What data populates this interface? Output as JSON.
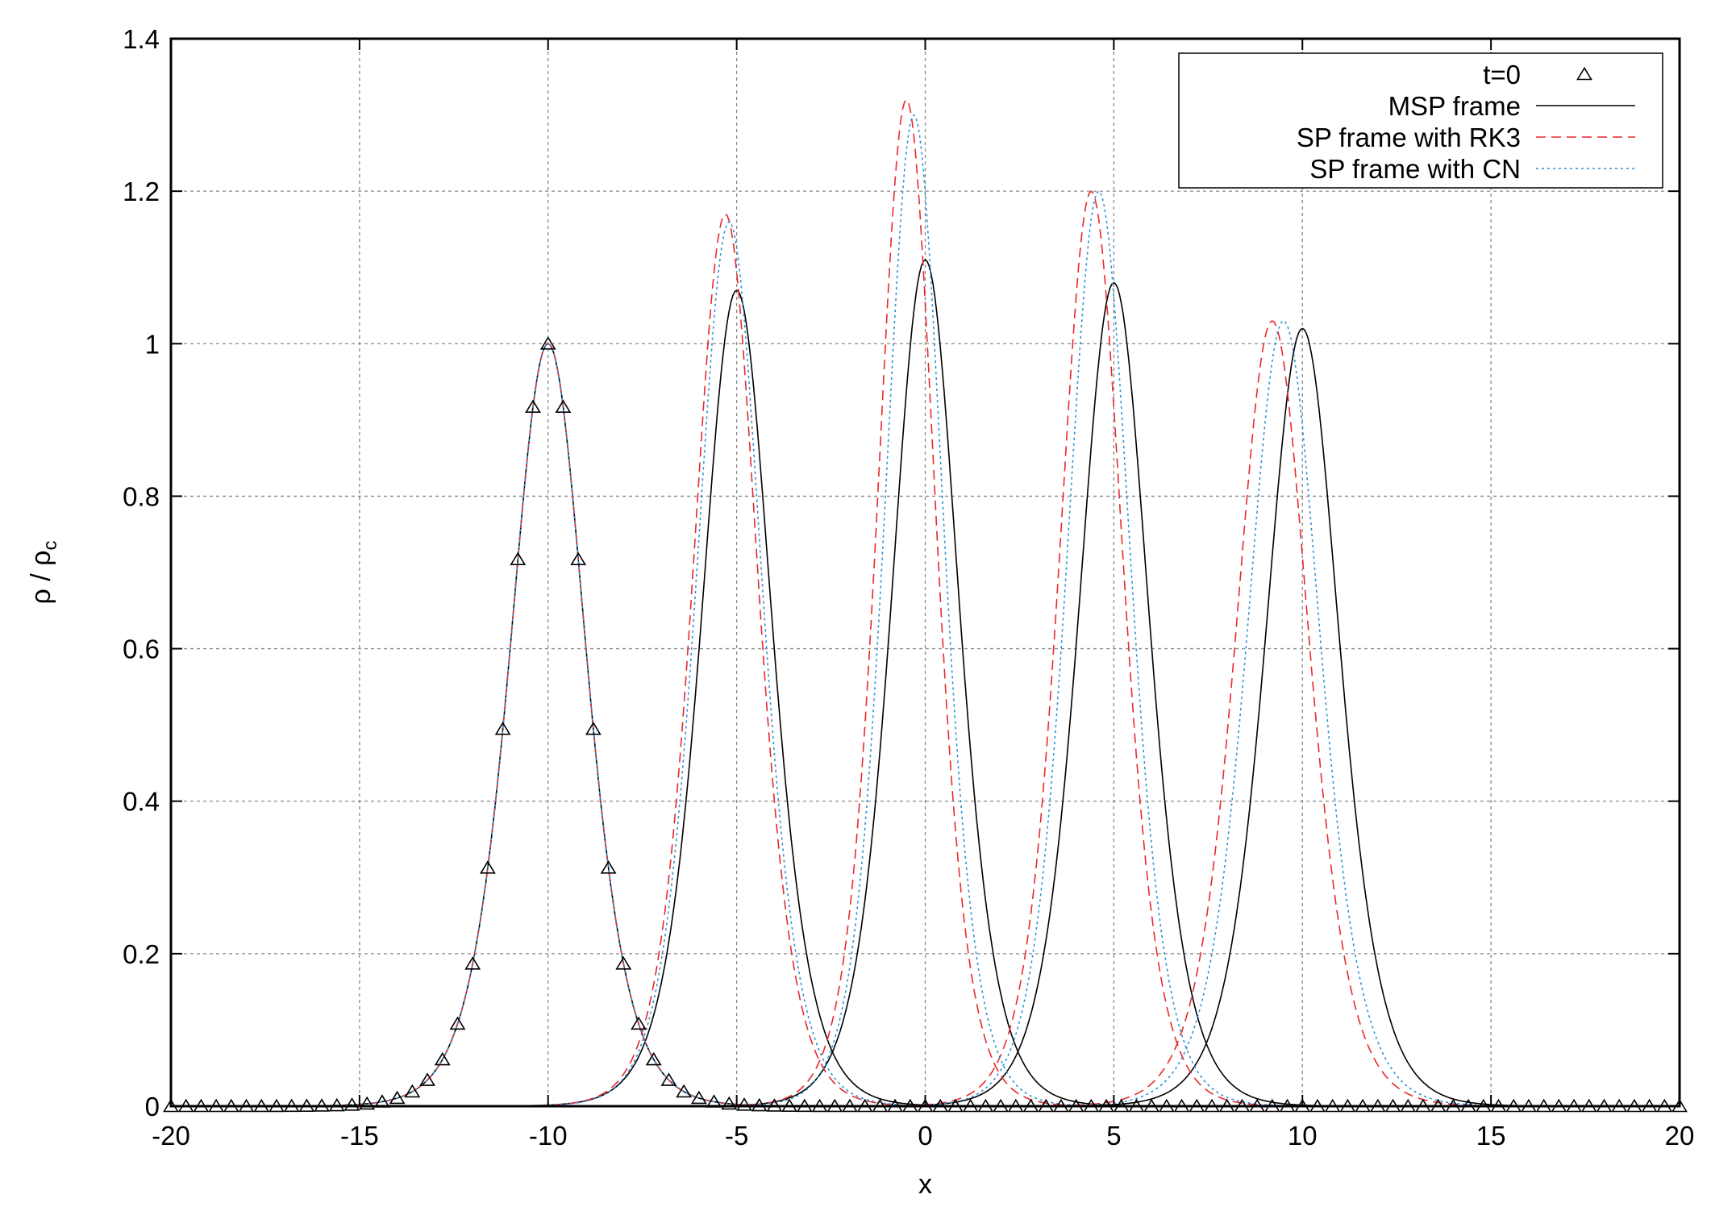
{
  "chart_data": {
    "type": "line",
    "title": "",
    "xlabel": "x",
    "ylabel": {
      "main": "ρ / ρ",
      "sub": "c"
    },
    "xlim": [
      -20,
      20
    ],
    "ylim": [
      0,
      1.4
    ],
    "xticks": [
      "-20",
      "-15",
      "-10",
      "-5",
      "0",
      "5",
      "10",
      "15",
      "20"
    ],
    "yticks": [
      "0",
      "0.2",
      "0.4",
      "0.6",
      "0.8",
      "1",
      "1.2",
      "1.4"
    ],
    "grid": true,
    "legend_position": "top-right",
    "series": [
      {
        "name": "t=0",
        "style": "markers",
        "marker": "triangle-icon",
        "color": "#000000",
        "pulses": [
          {
            "center": -10,
            "peak": 1.0,
            "width": 1.35
          }
        ]
      },
      {
        "name": "MSP frame",
        "style": "solid",
        "color": "#000000",
        "pulses": [
          {
            "center": -10,
            "peak": 1.0,
            "width": 1.35
          },
          {
            "center": -5.0,
            "peak": 1.07,
            "width": 1.25
          },
          {
            "center": 0.0,
            "peak": 1.11,
            "width": 1.2
          },
          {
            "center": 5.0,
            "peak": 1.08,
            "width": 1.25
          },
          {
            "center": 10.0,
            "peak": 1.02,
            "width": 1.32
          }
        ]
      },
      {
        "name": "SP frame with RK3",
        "style": "dashed",
        "color": "#e8292b",
        "pulses": [
          {
            "center": -10,
            "peak": 1.0,
            "width": 1.35
          },
          {
            "center": -5.3,
            "peak": 1.17,
            "width": 1.15
          },
          {
            "center": -0.5,
            "peak": 1.32,
            "width": 1.03
          },
          {
            "center": 4.4,
            "peak": 1.2,
            "width": 1.13
          },
          {
            "center": 9.2,
            "peak": 1.03,
            "width": 1.3
          }
        ]
      },
      {
        "name": "SP frame with CN",
        "style": "dotted",
        "color": "#2a8fd6",
        "pulses": [
          {
            "center": -10,
            "peak": 1.0,
            "width": 1.35
          },
          {
            "center": -5.2,
            "peak": 1.16,
            "width": 1.16
          },
          {
            "center": -0.3,
            "peak": 1.3,
            "width": 1.04
          },
          {
            "center": 4.6,
            "peak": 1.2,
            "width": 1.13
          },
          {
            "center": 9.5,
            "peak": 1.03,
            "width": 1.3
          }
        ]
      }
    ]
  }
}
